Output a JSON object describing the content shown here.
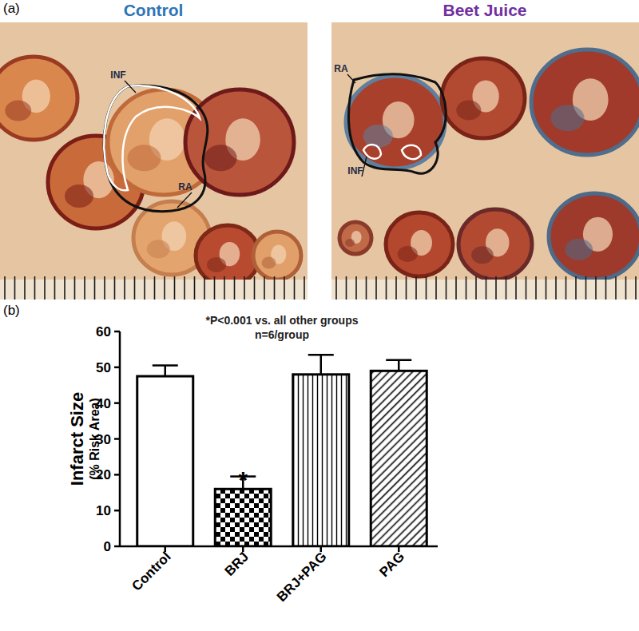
{
  "panel_a": {
    "label": "(a)",
    "images": [
      {
        "title": "Control",
        "labels": [
          "INF",
          "RA"
        ]
      },
      {
        "title": "Beet Juice",
        "labels": [
          "RA",
          "INF"
        ]
      }
    ]
  },
  "chart_data": {
    "type": "bar",
    "panel_label": "(b)",
    "title": "*P<0.001 vs. all other groups",
    "subtitle": "n=6/group",
    "y_label": "Infarct Size",
    "y_label_sub": "(% Risk Area)",
    "categories": [
      "Control",
      "BRJ",
      "BRJ+PAG",
      "PAG"
    ],
    "values": [
      47.5,
      16,
      48,
      49
    ],
    "errors": [
      3,
      3.5,
      5.5,
      3
    ],
    "color": "#ffffff",
    "ylim": [
      0,
      60
    ],
    "yticks": [
      0,
      10,
      20,
      30,
      40,
      50,
      60
    ],
    "grid": false,
    "annotations": [
      {
        "text": "*",
        "category": "BRJ"
      }
    ]
  }
}
